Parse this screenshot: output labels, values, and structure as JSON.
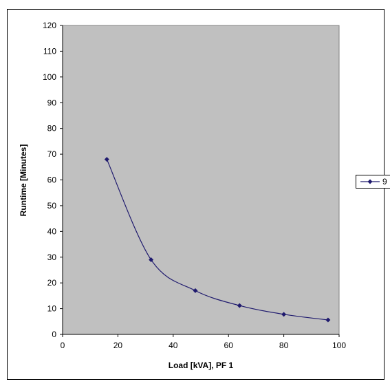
{
  "chart_data": {
    "type": "scatter",
    "title": "",
    "xlabel": "Load [kVA], PF 1",
    "ylabel": "Runtime [Minutes]",
    "xlim": [
      0,
      100
    ],
    "ylim": [
      0,
      120
    ],
    "x_ticks": [
      0,
      20,
      40,
      60,
      80,
      100
    ],
    "y_ticks": [
      0,
      10,
      20,
      30,
      40,
      50,
      60,
      70,
      80,
      90,
      100,
      110,
      120
    ],
    "smooth_line": true,
    "grid": false,
    "legend_position": "right",
    "plot_background": "#c0c0c0",
    "series": [
      {
        "name": "9",
        "color": "#1f1a6e",
        "marker": "diamond",
        "points": [
          {
            "x": 16,
            "y": 68
          },
          {
            "x": 32,
            "y": 29
          },
          {
            "x": 48,
            "y": 17
          },
          {
            "x": 64,
            "y": 11.2
          },
          {
            "x": 80,
            "y": 7.8
          },
          {
            "x": 96,
            "y": 5.6
          }
        ]
      }
    ]
  }
}
